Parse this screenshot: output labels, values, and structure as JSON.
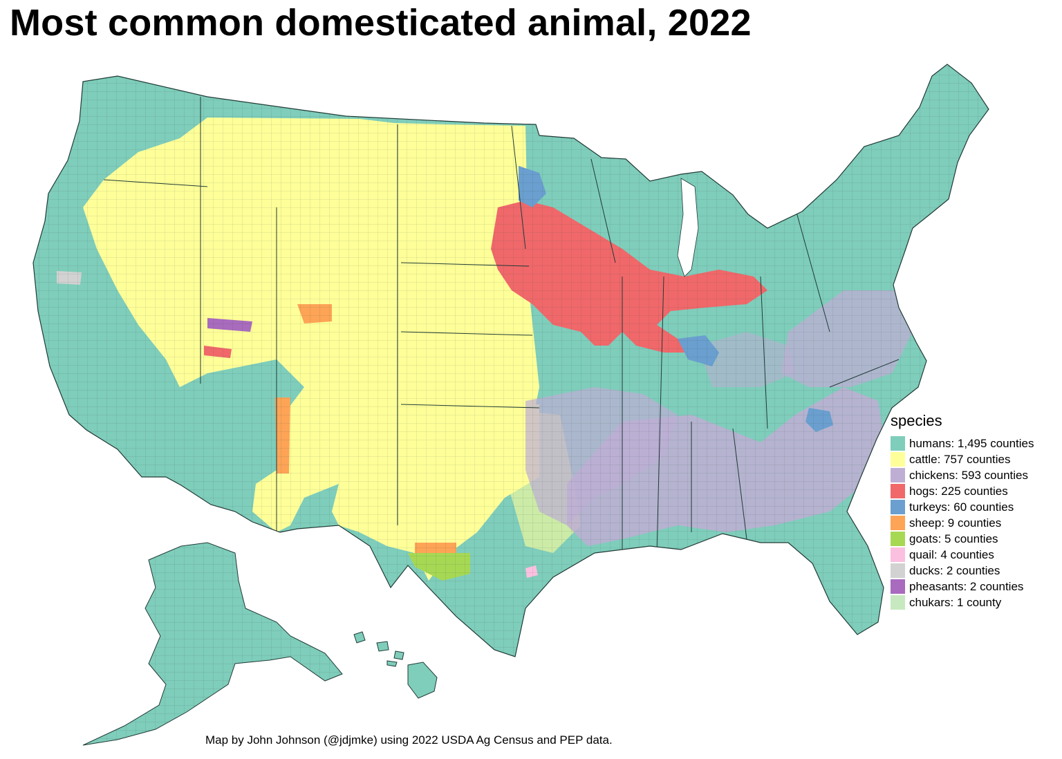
{
  "title": "Most common domesticated animal, 2022",
  "caption": "Map by John Johnson (@jdjmke) using 2022 USDA Ag Census and PEP data.",
  "legend": {
    "title": "species",
    "items": [
      {
        "label": "humans: 1,495 counties",
        "color": "#7fcdbb"
      },
      {
        "label": "cattle: 757 counties",
        "color": "#ffff99"
      },
      {
        "label": "chickens: 593 counties",
        "color": "#beaed4"
      },
      {
        "label": "hogs: 225 counties",
        "color": "#f0686a"
      },
      {
        "label": "turkeys: 60 counties",
        "color": "#6a9fcf"
      },
      {
        "label": "sheep: 9 counties",
        "color": "#fda456"
      },
      {
        "label": "goats: 5 counties",
        "color": "#a6d854"
      },
      {
        "label": "quail: 4 counties",
        "color": "#fbc0e0"
      },
      {
        "label": "ducks: 2 counties",
        "color": "#d2d2d2"
      },
      {
        "label": "pheasants: 2 counties",
        "color": "#a86bbd"
      },
      {
        "label": "chukars: 1 county",
        "color": "#c7e9c0"
      }
    ]
  }
}
